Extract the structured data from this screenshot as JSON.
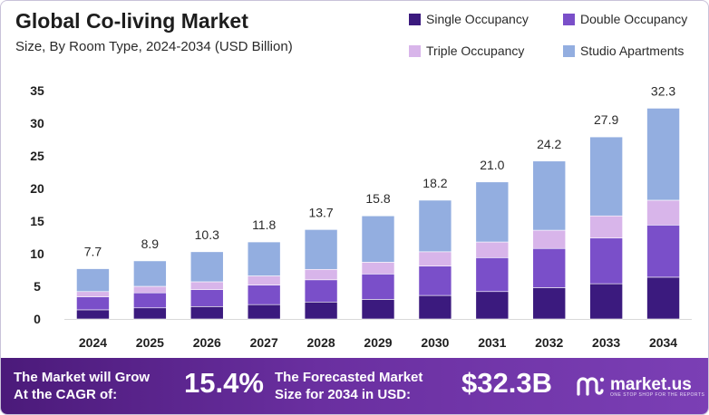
{
  "header": {
    "title": "Global Co-living Market",
    "subtitle": "Size, By Room Type, 2024-2034 (USD Billion)"
  },
  "colors": {
    "single": "#3b1a7e",
    "double": "#7a4fc9",
    "triple": "#d8b5ea",
    "studio": "#93aee0",
    "footer_start": "#4b1a7a",
    "footer_end": "#7b3fb5"
  },
  "chart_data": {
    "type": "bar",
    "stacked": true,
    "categories": [
      "2024",
      "2025",
      "2026",
      "2027",
      "2028",
      "2029",
      "2030",
      "2031",
      "2032",
      "2033",
      "2034"
    ],
    "series": [
      {
        "name": "Single Occupancy",
        "values": [
          1.4,
          1.7,
          1.9,
          2.2,
          2.6,
          3.0,
          3.6,
          4.2,
          4.8,
          5.4,
          6.4
        ]
      },
      {
        "name": "Double Occupancy",
        "values": [
          2.0,
          2.3,
          2.6,
          3.0,
          3.4,
          3.9,
          4.5,
          5.2,
          6.0,
          7.0,
          8.0
        ]
      },
      {
        "name": "Triple Occupancy",
        "values": [
          0.8,
          1.0,
          1.2,
          1.4,
          1.6,
          1.8,
          2.2,
          2.4,
          2.8,
          3.4,
          3.8
        ]
      },
      {
        "name": "Studio Apartments",
        "values": [
          3.5,
          3.9,
          4.6,
          5.2,
          6.1,
          7.1,
          7.9,
          9.2,
          10.6,
          12.1,
          14.1
        ]
      }
    ],
    "totals": [
      "7.7",
      "8.9",
      "10.3",
      "11.8",
      "13.7",
      "15.8",
      "18.2",
      "21.0",
      "24.2",
      "27.9",
      "32.3"
    ],
    "yticks": [
      "0",
      "5",
      "10",
      "15",
      "20",
      "25",
      "30",
      "35"
    ],
    "ylim": [
      0,
      35
    ],
    "legend_position": "top-right"
  },
  "footer": {
    "cagr_label_line1": "The Market will Grow",
    "cagr_label_line2": "At the CAGR of:",
    "cagr_value": "15.4%",
    "forecast_label_line1": "The Forecasted Market",
    "forecast_label_line2": "Size for 2034 in USD:",
    "forecast_value": "$32.3B",
    "brand_name": "market.us",
    "brand_tagline": "ONE STOP SHOP FOR THE REPORTS"
  }
}
